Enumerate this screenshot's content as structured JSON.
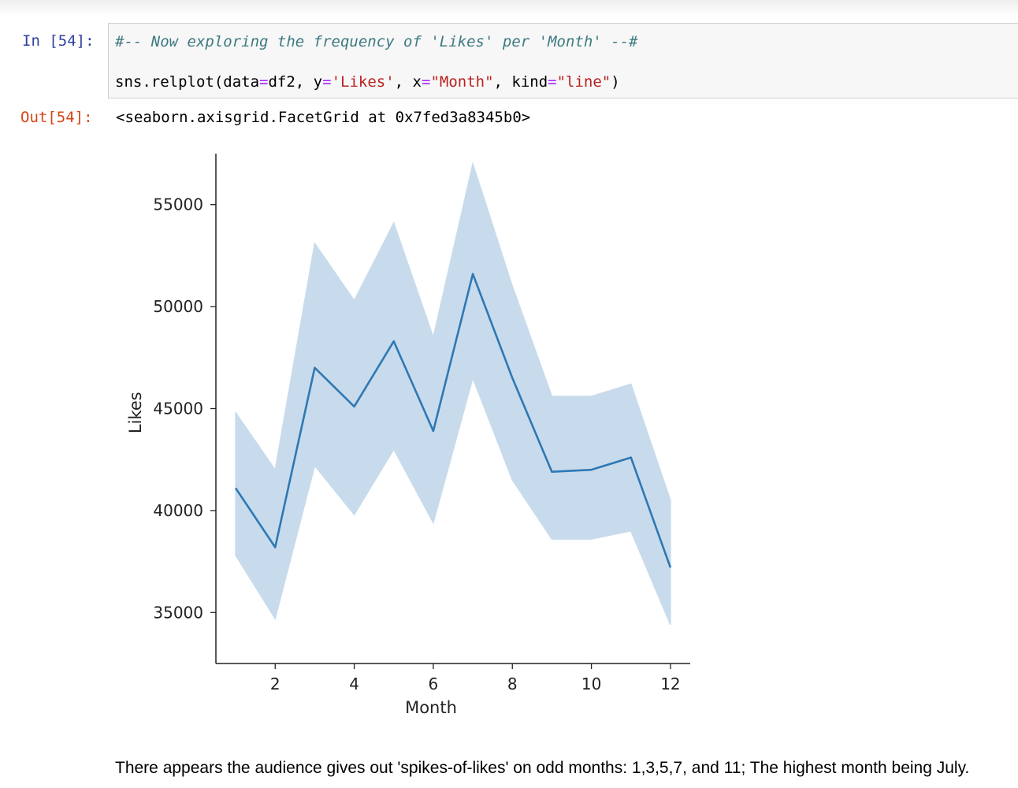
{
  "cell": {
    "in_prompt": "In [54]:",
    "out_prompt": "Out[54]:",
    "code_comment": "#-- Now exploring the frequency of 'Likes' per 'Month' --#",
    "code_parts": {
      "fn": "sns.relplot(data",
      "eq1": "=",
      "arg1": "df2, y",
      "eq2": "=",
      "str1": "'Likes'",
      "sep1": ", x",
      "eq3": "=",
      "str2": "\"Month\"",
      "sep2": ", kind",
      "eq4": "=",
      "str3": "\"line\"",
      "close": ")"
    },
    "output_text": "<seaborn.axisgrid.FacetGrid at 0x7fed3a8345b0>"
  },
  "chart_data": {
    "type": "line",
    "xlabel": "Month",
    "ylabel": "Likes",
    "xlim": [
      0.5,
      12.5
    ],
    "ylim": [
      32500,
      57500
    ],
    "x_ticks": [
      2,
      4,
      6,
      8,
      10,
      12
    ],
    "y_ticks": [
      35000,
      40000,
      45000,
      50000,
      55000
    ],
    "line_color": "#2e78b4",
    "band_color": "#c8dbec",
    "series": [
      {
        "x": [
          1,
          2,
          3,
          4,
          5,
          6,
          7,
          8,
          9,
          10,
          11,
          12
        ],
        "values": [
          41100,
          38200,
          47000,
          45100,
          48300,
          43900,
          51600,
          46500,
          41900,
          42000,
          42600,
          37200
        ],
        "ci_low": [
          37800,
          34700,
          42200,
          39800,
          43000,
          39400,
          46500,
          41500,
          38600,
          38600,
          39000,
          34400
        ],
        "ci_high": [
          44800,
          42000,
          53100,
          50300,
          54100,
          48500,
          57000,
          51000,
          45600,
          45600,
          46200,
          40500
        ]
      }
    ]
  },
  "note": "There appears the audience gives out 'spikes-of-likes' on odd months: 1,3,5,7, and 11; The highest month being July."
}
